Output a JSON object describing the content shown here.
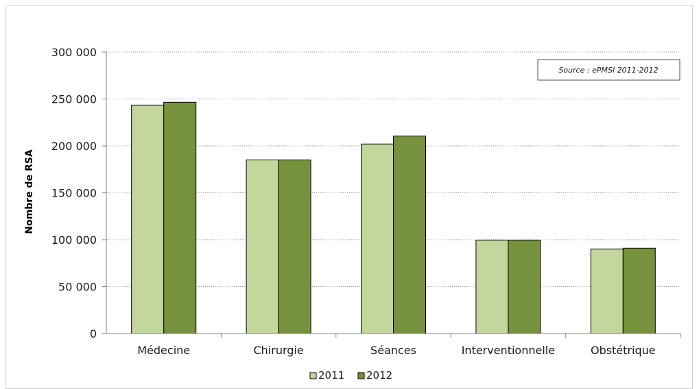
{
  "chart_data": {
    "type": "bar",
    "categories": [
      "Médecine",
      "Chirurgie",
      "Séances",
      "Interventionnelle",
      "Obstétrique"
    ],
    "series": [
      {
        "name": "2011",
        "values": [
          243500,
          185000,
          202000,
          99500,
          90000
        ],
        "color": "#c3d69b"
      },
      {
        "name": "2012",
        "values": [
          246500,
          185000,
          210500,
          99500,
          91000
        ],
        "color": "#76923c"
      }
    ],
    "title": "",
    "xlabel": "",
    "ylabel": "Nombre de RSA",
    "ylim": [
      0,
      300000
    ],
    "yticks": [
      0,
      50000,
      100000,
      150000,
      200000,
      250000,
      300000
    ],
    "ytick_labels": [
      "0",
      "50 000",
      "100 000",
      "150 000",
      "200 000",
      "250 000",
      "300 000"
    ],
    "grid": "horizontal dotted",
    "legend_position": "bottom",
    "annotation": "Source : ePMSI 2011-2012"
  }
}
